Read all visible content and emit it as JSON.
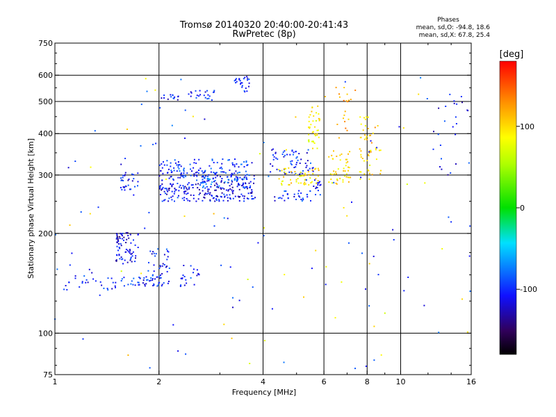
{
  "chart_data": {
    "type": "scatter",
    "title": "Tromsø 20140320 20:40:00-20:41:43",
    "subtitle": "RwPretec (8p)",
    "stats": {
      "title": "Phases",
      "line1": "mean, sd,O:  -94.8, 18.6",
      "line2": "mean, sd,X:  67.8, 25.4"
    },
    "xlabel": "Frequency [MHz]",
    "ylabel": "Stationary phase Virtual Height [km]",
    "x_scale": "log",
    "y_scale": "log",
    "xlim": [
      1,
      16
    ],
    "ylim": [
      75,
      750
    ],
    "x_ticks": [
      1,
      2,
      4,
      6,
      8,
      10,
      16
    ],
    "x_tick_labels": [
      "1",
      "2",
      "4",
      "6",
      "8",
      "10",
      "16"
    ],
    "y_ticks": [
      75,
      100,
      200,
      300,
      400,
      500,
      600,
      750
    ],
    "y_tick_labels": [
      "75",
      "100",
      "200",
      "300",
      "400",
      "500",
      "600",
      "750"
    ],
    "grid": true,
    "colorbar": {
      "label": "[deg]",
      "range": [
        -180,
        180
      ],
      "ticks": [
        100,
        0,
        -100
      ],
      "tick_labels": [
        "100",
        "0",
        "-100"
      ]
    },
    "clusters": [
      {
        "x": [
          1.05,
          1.5
        ],
        "y": [
          135,
          150
        ],
        "phase": -105,
        "n": 28
      },
      {
        "x": [
          1.5,
          1.75
        ],
        "y": [
          160,
          200
        ],
        "phase": -110,
        "n": 55
      },
      {
        "x": [
          1.5,
          1.65
        ],
        "y": [
          187,
          202
        ],
        "phase": -120,
        "n": 22
      },
      {
        "x": [
          1.55,
          1.75
        ],
        "y": [
          270,
          305
        ],
        "phase": -110,
        "n": 30
      },
      {
        "x": [
          1.55,
          2.05
        ],
        "y": [
          138,
          148
        ],
        "phase": -100,
        "n": 40
      },
      {
        "x": [
          1.85,
          2.15
        ],
        "y": [
          140,
          180
        ],
        "phase": -105,
        "n": 40
      },
      {
        "x": [
          2.3,
          2.65
        ],
        "y": [
          138,
          162
        ],
        "phase": -100,
        "n": 22
      },
      {
        "x": [
          2.0,
          3.8
        ],
        "y": [
          250,
          265
        ],
        "phase": -110,
        "n": 90
      },
      {
        "x": [
          2.0,
          3.8
        ],
        "y": [
          265,
          285
        ],
        "phase": -115,
        "n": 110
      },
      {
        "x": [
          2.0,
          3.8
        ],
        "y": [
          285,
          310
        ],
        "phase": -105,
        "n": 110
      },
      {
        "x": [
          2.0,
          3.8
        ],
        "y": [
          305,
          335
        ],
        "phase": -95,
        "n": 70
      },
      {
        "x": [
          2.6,
          3.6
        ],
        "y": [
          275,
          295
        ],
        "phase": -85,
        "n": 35
      },
      {
        "x": [
          2.0,
          2.3
        ],
        "y": [
          505,
          525
        ],
        "phase": -110,
        "n": 14
      },
      {
        "x": [
          2.4,
          3.0
        ],
        "y": [
          505,
          540
        ],
        "phase": -105,
        "n": 22
      },
      {
        "x": [
          3.3,
          3.7
        ],
        "y": [
          535,
          595
        ],
        "phase": -100,
        "n": 25
      },
      {
        "x": [
          4.2,
          5.6
        ],
        "y": [
          300,
          360
        ],
        "phase": -105,
        "n": 60
      },
      {
        "x": [
          4.4,
          5.8
        ],
        "y": [
          280,
          315
        ],
        "phase": 95,
        "n": 55
      },
      {
        "x": [
          4.3,
          5.5
        ],
        "y": [
          250,
          270
        ],
        "phase": -100,
        "n": 30
      },
      {
        "x": [
          5.4,
          5.9
        ],
        "y": [
          360,
          490
        ],
        "phase": 90,
        "n": 40
      },
      {
        "x": [
          5.6,
          5.9
        ],
        "y": [
          260,
          300
        ],
        "phase": -105,
        "n": 15
      },
      {
        "x": [
          6.2,
          7.2
        ],
        "y": [
          280,
          360
        ],
        "phase": 95,
        "n": 45
      },
      {
        "x": [
          6.4,
          7.4
        ],
        "y": [
          380,
          560
        ],
        "phase": 120,
        "n": 20
      },
      {
        "x": [
          7.6,
          8.2
        ],
        "y": [
          290,
          450
        ],
        "phase": 100,
        "n": 40
      },
      {
        "x": [
          8.2,
          8.8
        ],
        "y": [
          300,
          420
        ],
        "phase": 110,
        "n": 12
      },
      {
        "x": [
          1.0,
          16.0
        ],
        "y": [
          78,
          620
        ],
        "phase": -100,
        "n": 90
      },
      {
        "x": [
          1.0,
          16.0
        ],
        "y": [
          80,
          620
        ],
        "phase": 90,
        "n": 45
      },
      {
        "x": [
          11.5,
          16.0
        ],
        "y": [
          300,
          520
        ],
        "phase": -110,
        "n": 25
      }
    ]
  }
}
